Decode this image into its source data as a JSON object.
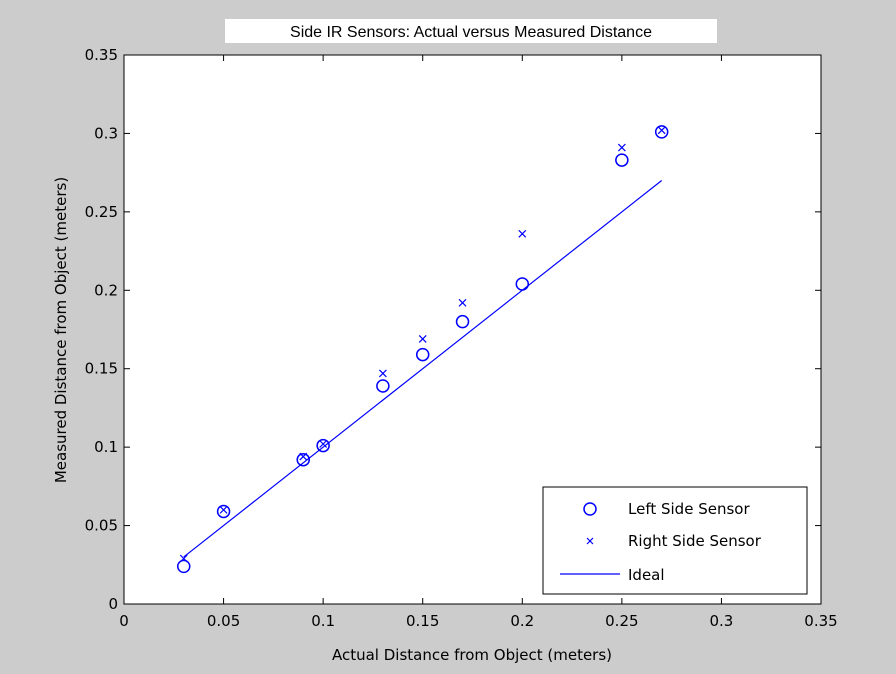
{
  "figure": {
    "background": "#cccccc",
    "plot_background": "#ffffff",
    "series_color": "#0000ff"
  },
  "chart_data": {
    "type": "scatter",
    "title": "Side IR Sensors: Actual versus Measured Distance",
    "xlabel": "Actual Distance from Object (meters)",
    "ylabel": "Measured Distance from Object (meters)",
    "xlim": [
      0,
      0.35
    ],
    "ylim": [
      0,
      0.35
    ],
    "xticks": [
      "0",
      "0.05",
      "0.1",
      "0.15",
      "0.2",
      "0.25",
      "0.3",
      "0.35"
    ],
    "yticks": [
      "0",
      "0.05",
      "0.1",
      "0.15",
      "0.2",
      "0.25",
      "0.3",
      "0.35"
    ],
    "grid": false,
    "legend_position": "bottom-right",
    "series": [
      {
        "name": "Left Side Sensor",
        "marker": "circle",
        "line": false,
        "x": [
          0.03,
          0.05,
          0.09,
          0.1,
          0.13,
          0.15,
          0.17,
          0.2,
          0.25,
          0.27
        ],
        "y": [
          0.024,
          0.059,
          0.092,
          0.101,
          0.139,
          0.159,
          0.18,
          0.204,
          0.283,
          0.301
        ]
      },
      {
        "name": "Right Side Sensor",
        "marker": "x",
        "line": false,
        "x": [
          0.03,
          0.05,
          0.09,
          0.1,
          0.13,
          0.15,
          0.17,
          0.2,
          0.25,
          0.27
        ],
        "y": [
          0.029,
          0.06,
          0.094,
          0.102,
          0.147,
          0.169,
          0.192,
          0.236,
          0.291,
          0.302
        ]
      },
      {
        "name": "Ideal",
        "marker": "none",
        "line": true,
        "x": [
          0.03,
          0.27
        ],
        "y": [
          0.03,
          0.27
        ]
      }
    ]
  }
}
